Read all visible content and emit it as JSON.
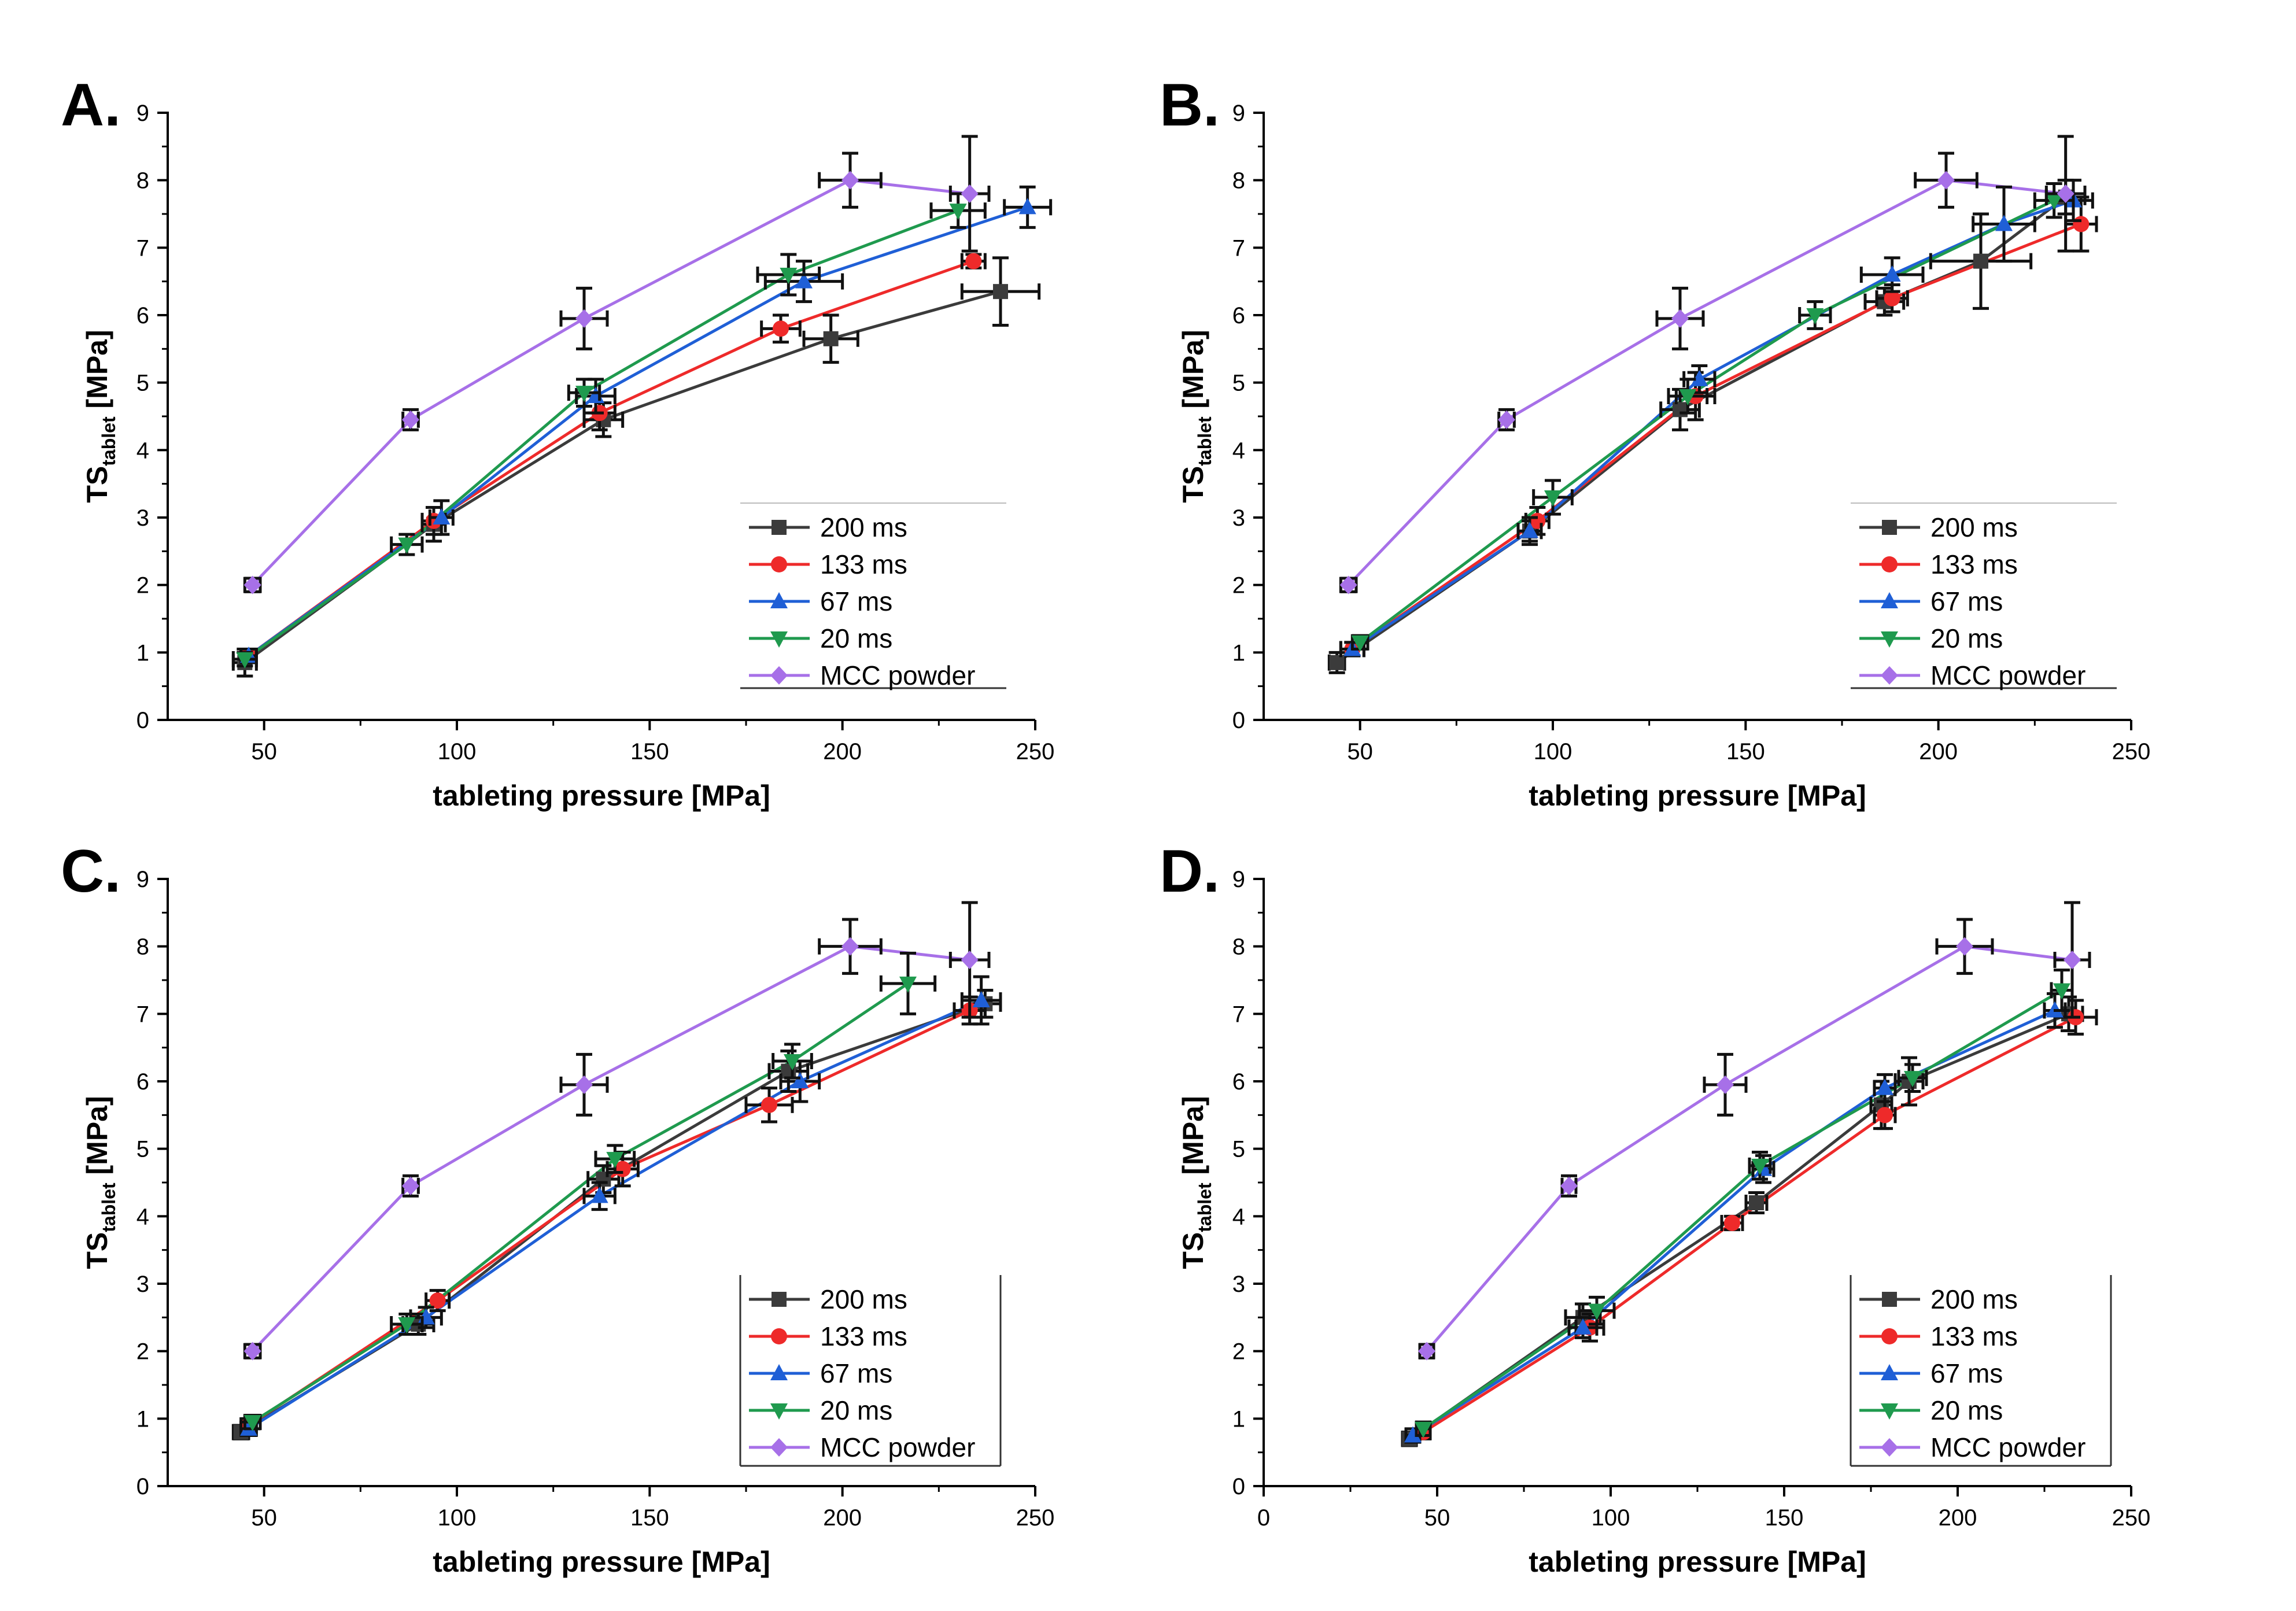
{
  "colors": {
    "s200": "#3b3b3b",
    "s133": "#ee2a2a",
    "s67": "#1f5fd6",
    "s20": "#1f9a4e",
    "mcc": "#a770e8",
    "err": "#111111"
  },
  "chart_data": [
    {
      "type": "line",
      "panel_label": "A.",
      "xlabel": "tableting pressure [MPa]",
      "ylabel_main": "TS",
      "ylabel_sub": "tablet",
      "ylabel_unit": " [MPa]",
      "xlim": [
        25,
        250
      ],
      "ylim": [
        0,
        9
      ],
      "xticks": [
        50,
        100,
        150,
        200,
        250
      ],
      "yticks": [
        0,
        1,
        2,
        3,
        4,
        5,
        6,
        7,
        8,
        9
      ],
      "legend_position": "bottom-right",
      "series": [
        {
          "name": "200 ms",
          "marker": "square",
          "color_key": "s200",
          "points": [
            {
              "x": 45,
              "y": 0.85,
              "ex": 3,
              "ey": 0.2
            },
            {
              "x": 94,
              "y": 2.9,
              "ex": 3,
              "ey": 0.25
            },
            {
              "x": 138,
              "y": 4.45,
              "ex": 5,
              "ey": 0.25
            },
            {
              "x": 197,
              "y": 5.65,
              "ex": 7,
              "ey": 0.35
            },
            {
              "x": 241,
              "y": 6.35,
              "ex": 10,
              "ey": 0.5
            }
          ]
        },
        {
          "name": "133 ms",
          "marker": "circle",
          "color_key": "s133",
          "points": [
            {
              "x": 46,
              "y": 0.95,
              "ex": 2,
              "ey": 0.1
            },
            {
              "x": 94,
              "y": 2.95,
              "ex": 3,
              "ey": 0.2
            },
            {
              "x": 137,
              "y": 4.55,
              "ex": 4,
              "ey": 0.25
            },
            {
              "x": 184,
              "y": 5.8,
              "ex": 5,
              "ey": 0.2
            },
            {
              "x": 234,
              "y": 6.8,
              "ex": 3,
              "ey": 0.1
            }
          ]
        },
        {
          "name": "67 ms",
          "marker": "triangle-up",
          "color_key": "s67",
          "points": [
            {
              "x": 46,
              "y": 0.95,
              "ex": 2,
              "ey": 0.1
            },
            {
              "x": 96,
              "y": 3.0,
              "ex": 3,
              "ey": 0.25
            },
            {
              "x": 136,
              "y": 4.8,
              "ex": 5,
              "ey": 0.25
            },
            {
              "x": 190,
              "y": 6.5,
              "ex": 10,
              "ey": 0.3
            },
            {
              "x": 248,
              "y": 7.6,
              "ex": 6,
              "ey": 0.3
            }
          ]
        },
        {
          "name": "20 ms",
          "marker": "triangle-down",
          "color_key": "s20",
          "points": [
            {
              "x": 45,
              "y": 0.9,
              "ex": 3,
              "ey": 0.1
            },
            {
              "x": 87,
              "y": 2.6,
              "ex": 4,
              "ey": 0.15
            },
            {
              "x": 133,
              "y": 4.85,
              "ex": 4,
              "ey": 0.2
            },
            {
              "x": 186,
              "y": 6.6,
              "ex": 8,
              "ey": 0.3
            },
            {
              "x": 230,
              "y": 7.55,
              "ex": 7,
              "ey": 0.25
            }
          ]
        },
        {
          "name": "MCC powder",
          "marker": "diamond",
          "color_key": "mcc",
          "points": [
            {
              "x": 47,
              "y": 2.0,
              "ex": 2,
              "ey": 0.1
            },
            {
              "x": 88,
              "y": 4.45,
              "ex": 2,
              "ey": 0.15
            },
            {
              "x": 133,
              "y": 5.95,
              "ex": 6,
              "ey": 0.45
            },
            {
              "x": 202,
              "y": 8.0,
              "ex": 8,
              "ey": 0.4
            },
            {
              "x": 233,
              "y": 7.8,
              "ex": 5,
              "ey": 0.85
            }
          ]
        }
      ]
    },
    {
      "type": "line",
      "panel_label": "B.",
      "xlabel": "tableting pressure [MPa]",
      "ylabel_main": "TS",
      "ylabel_sub": "tablet",
      "ylabel_unit": " [MPa]",
      "xlim": [
        25,
        250
      ],
      "ylim": [
        0,
        9
      ],
      "xticks": [
        50,
        100,
        150,
        200,
        250
      ],
      "yticks": [
        0,
        1,
        2,
        3,
        4,
        5,
        6,
        7,
        8,
        9
      ],
      "legend_position": "bottom-right",
      "series": [
        {
          "name": "200 ms",
          "marker": "square",
          "color_key": "s200",
          "points": [
            {
              "x": 44,
              "y": 0.85,
              "ex": 2,
              "ey": 0.15
            },
            {
              "x": 94,
              "y": 2.8,
              "ex": 3,
              "ey": 0.15
            },
            {
              "x": 133,
              "y": 4.6,
              "ex": 5,
              "ey": 0.3
            },
            {
              "x": 186,
              "y": 6.2,
              "ex": 5,
              "ey": 0.2
            },
            {
              "x": 211,
              "y": 6.8,
              "ex": 13,
              "ey": 0.7
            },
            {
              "x": 233,
              "y": 7.75,
              "ex": 5,
              "ey": 0.25
            }
          ]
        },
        {
          "name": "133 ms",
          "marker": "circle",
          "color_key": "s133",
          "points": [
            {
              "x": 48,
              "y": 1.05,
              "ex": 3,
              "ey": 0.1
            },
            {
              "x": 96,
              "y": 2.95,
              "ex": 3,
              "ey": 0.2
            },
            {
              "x": 137,
              "y": 4.8,
              "ex": 5,
              "ey": 0.35
            },
            {
              "x": 188,
              "y": 6.25,
              "ex": 4,
              "ey": 0.2
            },
            {
              "x": 237,
              "y": 7.35,
              "ex": 4,
              "ey": 0.4
            }
          ]
        },
        {
          "name": "67 ms",
          "marker": "triangle-up",
          "color_key": "s67",
          "points": [
            {
              "x": 48,
              "y": 1.05,
              "ex": 3,
              "ey": 0.1
            },
            {
              "x": 94,
              "y": 2.8,
              "ex": 3,
              "ey": 0.2
            },
            {
              "x": 138,
              "y": 5.05,
              "ex": 4,
              "ey": 0.2
            },
            {
              "x": 188,
              "y": 6.6,
              "ex": 8,
              "ey": 0.25
            },
            {
              "x": 217,
              "y": 7.35,
              "ex": 8,
              "ey": 0.55
            },
            {
              "x": 235,
              "y": 7.7,
              "ex": 5,
              "ey": 0.3
            }
          ]
        },
        {
          "name": "20 ms",
          "marker": "triangle-down",
          "color_key": "s20",
          "points": [
            {
              "x": 50,
              "y": 1.15,
              "ex": 2,
              "ey": 0.1
            },
            {
              "x": 100,
              "y": 3.3,
              "ex": 5,
              "ey": 0.25
            },
            {
              "x": 135,
              "y": 4.8,
              "ex": 5,
              "ey": 0.25
            },
            {
              "x": 168,
              "y": 6.0,
              "ex": 4,
              "ey": 0.2
            },
            {
              "x": 230,
              "y": 7.7,
              "ex": 5,
              "ey": 0.25
            }
          ]
        },
        {
          "name": "MCC powder",
          "marker": "diamond",
          "color_key": "mcc",
          "points": [
            {
              "x": 47,
              "y": 2.0,
              "ex": 2,
              "ey": 0.1
            },
            {
              "x": 88,
              "y": 4.45,
              "ex": 2,
              "ey": 0.15
            },
            {
              "x": 133,
              "y": 5.95,
              "ex": 6,
              "ey": 0.45
            },
            {
              "x": 202,
              "y": 8.0,
              "ex": 8,
              "ey": 0.4
            },
            {
              "x": 233,
              "y": 7.8,
              "ex": 5,
              "ey": 0.85
            }
          ]
        }
      ]
    },
    {
      "type": "line",
      "panel_label": "C.",
      "xlabel": "tableting pressure [MPa]",
      "ylabel_main": "TS",
      "ylabel_sub": "tablet",
      "ylabel_unit": " [MPa]",
      "xlim": [
        25,
        250
      ],
      "ylim": [
        0,
        9
      ],
      "xticks": [
        50,
        100,
        150,
        200,
        250
      ],
      "yticks": [
        0,
        1,
        2,
        3,
        4,
        5,
        6,
        7,
        8,
        9
      ],
      "legend_position": "bottom-right",
      "series": [
        {
          "name": "200 ms",
          "marker": "square",
          "color_key": "s200",
          "points": [
            {
              "x": 44,
              "y": 0.8,
              "ex": 2,
              "ey": 0.1
            },
            {
              "x": 90,
              "y": 2.4,
              "ex": 4,
              "ey": 0.15
            },
            {
              "x": 138,
              "y": 4.55,
              "ex": 4,
              "ey": 0.2
            },
            {
              "x": 186,
              "y": 6.15,
              "ex": 5,
              "ey": 0.3
            },
            {
              "x": 237,
              "y": 7.15,
              "ex": 4,
              "ey": 0.2
            }
          ]
        },
        {
          "name": "133 ms",
          "marker": "circle",
          "color_key": "s133",
          "points": [
            {
              "x": 46,
              "y": 0.9,
              "ex": 2,
              "ey": 0.1
            },
            {
              "x": 95,
              "y": 2.75,
              "ex": 3,
              "ey": 0.15
            },
            {
              "x": 143,
              "y": 4.7,
              "ex": 4,
              "ey": 0.25
            },
            {
              "x": 181,
              "y": 5.65,
              "ex": 6,
              "ey": 0.25
            },
            {
              "x": 233,
              "y": 7.05,
              "ex": 4,
              "ey": 0.2
            }
          ]
        },
        {
          "name": "67 ms",
          "marker": "triangle-up",
          "color_key": "s67",
          "points": [
            {
              "x": 46,
              "y": 0.85,
              "ex": 2,
              "ey": 0.1
            },
            {
              "x": 92,
              "y": 2.5,
              "ex": 4,
              "ey": 0.15
            },
            {
              "x": 137,
              "y": 4.3,
              "ex": 4,
              "ey": 0.2
            },
            {
              "x": 189,
              "y": 6.0,
              "ex": 5,
              "ey": 0.3
            },
            {
              "x": 236,
              "y": 7.2,
              "ex": 5,
              "ey": 0.35
            }
          ]
        },
        {
          "name": "20 ms",
          "marker": "triangle-down",
          "color_key": "s20",
          "points": [
            {
              "x": 47,
              "y": 0.95,
              "ex": 2,
              "ey": 0.1
            },
            {
              "x": 87,
              "y": 2.4,
              "ex": 4,
              "ey": 0.15
            },
            {
              "x": 141,
              "y": 4.85,
              "ex": 5,
              "ey": 0.2
            },
            {
              "x": 187,
              "y": 6.3,
              "ex": 5,
              "ey": 0.25
            },
            {
              "x": 217,
              "y": 7.45,
              "ex": 7,
              "ey": 0.45
            }
          ]
        },
        {
          "name": "MCC powder",
          "marker": "diamond",
          "color_key": "mcc",
          "points": [
            {
              "x": 47,
              "y": 2.0,
              "ex": 2,
              "ey": 0.1
            },
            {
              "x": 88,
              "y": 4.45,
              "ex": 2,
              "ey": 0.15
            },
            {
              "x": 133,
              "y": 5.95,
              "ex": 6,
              "ey": 0.45
            },
            {
              "x": 202,
              "y": 8.0,
              "ex": 8,
              "ey": 0.4
            },
            {
              "x": 233,
              "y": 7.8,
              "ex": 5,
              "ey": 0.85
            }
          ]
        }
      ]
    },
    {
      "type": "line",
      "panel_label": "D.",
      "xlabel": "tableting pressure [MPa]",
      "ylabel_main": "TS",
      "ylabel_sub": "tablet",
      "ylabel_unit": " [MPa]",
      "xlim": [
        0,
        250
      ],
      "ylim": [
        0,
        9
      ],
      "xticks": [
        0,
        50,
        100,
        150,
        200,
        250
      ],
      "yticks": [
        0,
        1,
        2,
        3,
        4,
        5,
        6,
        7,
        8,
        9
      ],
      "legend_position": "bottom-right",
      "series": [
        {
          "name": "200 ms",
          "marker": "square",
          "color_key": "s200",
          "points": [
            {
              "x": 42,
              "y": 0.7,
              "ex": 2,
              "ey": 0.1
            },
            {
              "x": 92,
              "y": 2.5,
              "ex": 5,
              "ey": 0.2
            },
            {
              "x": 142,
              "y": 4.2,
              "ex": 3,
              "ey": 0.15
            },
            {
              "x": 178,
              "y": 5.65,
              "ex": 3,
              "ey": 0.35
            },
            {
              "x": 186,
              "y": 6.0,
              "ex": 4,
              "ey": 0.35
            },
            {
              "x": 232,
              "y": 7.0,
              "ex": 4,
              "ey": 0.25
            }
          ]
        },
        {
          "name": "133 ms",
          "marker": "circle",
          "color_key": "s133",
          "points": [
            {
              "x": 46,
              "y": 0.8,
              "ex": 2,
              "ey": 0.1
            },
            {
              "x": 94,
              "y": 2.35,
              "ex": 4,
              "ey": 0.2
            },
            {
              "x": 135,
              "y": 3.9,
              "ex": 3,
              "ey": 0.1
            },
            {
              "x": 179,
              "y": 5.5,
              "ex": 3,
              "ey": 0.2
            },
            {
              "x": 234,
              "y": 6.95,
              "ex": 6,
              "ey": 0.25
            }
          ]
        },
        {
          "name": "67 ms",
          "marker": "triangle-up",
          "color_key": "s67",
          "points": [
            {
              "x": 43,
              "y": 0.75,
              "ex": 2,
              "ey": 0.1
            },
            {
              "x": 92,
              "y": 2.35,
              "ex": 4,
              "ey": 0.15
            },
            {
              "x": 144,
              "y": 4.7,
              "ex": 3,
              "ey": 0.2
            },
            {
              "x": 179,
              "y": 5.9,
              "ex": 3,
              "ey": 0.2
            },
            {
              "x": 228,
              "y": 7.05,
              "ex": 3,
              "ey": 0.25
            }
          ]
        },
        {
          "name": "20 ms",
          "marker": "triangle-down",
          "color_key": "s20",
          "points": [
            {
              "x": 46,
              "y": 0.85,
              "ex": 2,
              "ey": 0.1
            },
            {
              "x": 96,
              "y": 2.6,
              "ex": 5,
              "ey": 0.2
            },
            {
              "x": 143,
              "y": 4.75,
              "ex": 3,
              "ey": 0.2
            },
            {
              "x": 187,
              "y": 6.05,
              "ex": 4,
              "ey": 0.2
            },
            {
              "x": 230,
              "y": 7.35,
              "ex": 3,
              "ey": 0.3
            }
          ]
        },
        {
          "name": "MCC powder",
          "marker": "diamond",
          "color_key": "mcc",
          "points": [
            {
              "x": 47,
              "y": 2.0,
              "ex": 2,
              "ey": 0.1
            },
            {
              "x": 88,
              "y": 4.45,
              "ex": 2,
              "ey": 0.15
            },
            {
              "x": 133,
              "y": 5.95,
              "ex": 6,
              "ey": 0.45
            },
            {
              "x": 202,
              "y": 8.0,
              "ex": 8,
              "ey": 0.4
            },
            {
              "x": 233,
              "y": 7.8,
              "ex": 5,
              "ey": 0.85
            }
          ]
        }
      ]
    }
  ]
}
